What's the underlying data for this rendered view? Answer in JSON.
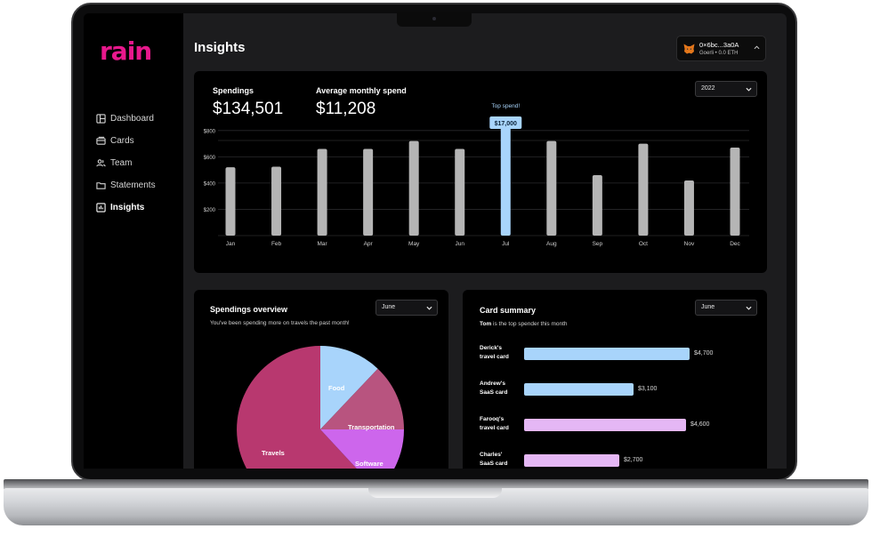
{
  "app": {
    "logo_text": "rain",
    "brand_color": "#e8188c"
  },
  "sidebar": {
    "items": [
      {
        "label": "Dashboard",
        "icon": "dashboard-icon"
      },
      {
        "label": "Cards",
        "icon": "card-icon"
      },
      {
        "label": "Team",
        "icon": "team-icon"
      },
      {
        "label": "Statements",
        "icon": "folder-icon"
      },
      {
        "label": "Insights",
        "icon": "insights-icon",
        "active": true
      }
    ]
  },
  "header": {
    "title": "Insights"
  },
  "wallet": {
    "address": "0×6bc...3a0A",
    "network": "Goerli • 0.0 ETH",
    "icon": "metamask-fox-icon"
  },
  "overview": {
    "spendings_label": "Spendings",
    "spendings_value": "$134,501",
    "avg_label": "Average monthly spend",
    "avg_value": "$11,208",
    "year_select": "2022",
    "top_spend_label": "Top spend!",
    "top_spend_value": "$17,000"
  },
  "chart_data": {
    "type": "bar",
    "categories": [
      "Jan",
      "Feb",
      "Mar",
      "Apr",
      "May",
      "Jun",
      "Jul",
      "Aug",
      "Sep",
      "Oct",
      "Nov",
      "Dec"
    ],
    "values": [
      520,
      525,
      660,
      660,
      720,
      660,
      850,
      720,
      460,
      700,
      420,
      670
    ],
    "highlight_index": 6,
    "yticks": [
      "$200",
      "$400",
      "$600",
      "$800"
    ],
    "ytick_values": [
      200,
      400,
      600,
      800
    ],
    "ylim": [
      0,
      880
    ],
    "bar_color": "#b5b5b5",
    "highlight_color": "#a8d4fb"
  },
  "spendings_overview": {
    "title": "Spendings overview",
    "subtitle": "You've been spending more on travels the past month!",
    "month_select": "June",
    "slices": [
      {
        "label": "Travels",
        "color": "#b8386f"
      },
      {
        "label": "Food",
        "color": "#a8d4fb"
      },
      {
        "label": "Transportation",
        "color": "#b8547f"
      },
      {
        "label": "Software",
        "color": "#cd66ec"
      }
    ]
  },
  "card_summary": {
    "title": "Card summary",
    "subtitle_name": "Tom",
    "subtitle_rest": " is the top spender this month",
    "month_select": "June",
    "rows": [
      {
        "line1": "Derick's",
        "line2": "travel card",
        "value": "$4,700",
        "amount": 4700,
        "color": "#a8d4fb"
      },
      {
        "line1": "Andrew's",
        "line2": "SaaS card",
        "value": "$3,100",
        "amount": 3100,
        "color": "#a8d4fb"
      },
      {
        "line1": "Farooq's",
        "line2": "travel card",
        "value": "$4,600",
        "amount": 4600,
        "color": "#e5b7f5"
      },
      {
        "line1": "Charles'",
        "line2": "SaaS card",
        "value": "$2,700",
        "amount": 2700,
        "color": "#e5b7f5"
      }
    ]
  }
}
